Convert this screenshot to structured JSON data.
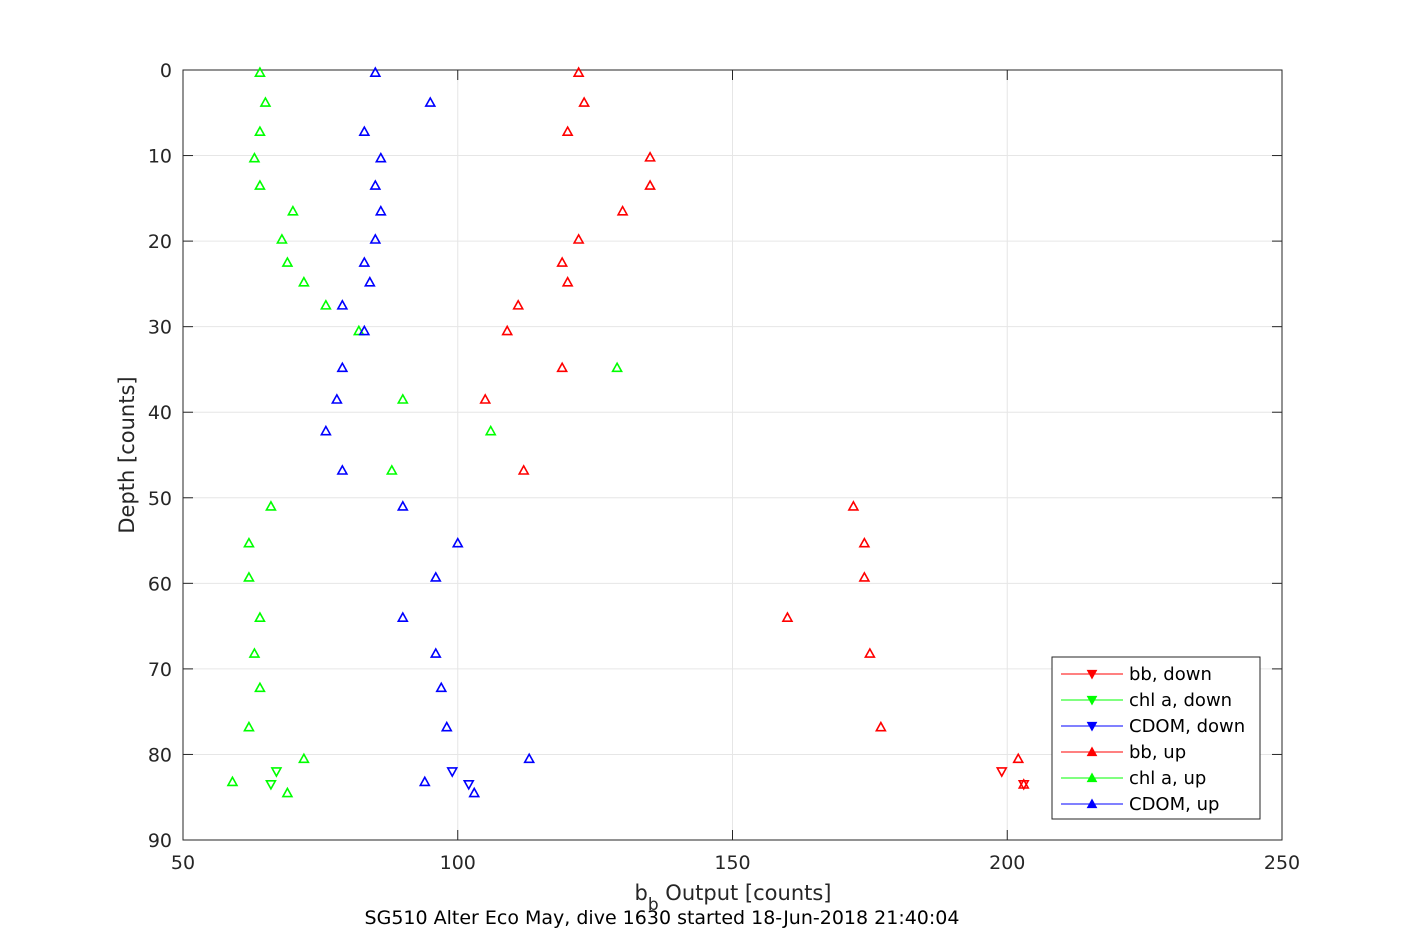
{
  "chart_data": {
    "type": "scatter",
    "caption": "SG510 Alter Eco May, dive 1630 started 18-Jun-2018 21:40:04",
    "xlabel_main": "b",
    "xlabel_sub": "b",
    "xlabel_rest": " Output [counts]",
    "ylabel": "Depth [counts]",
    "xlim": [
      50,
      250
    ],
    "ylim": [
      0,
      90
    ],
    "y_reversed": true,
    "grid": true,
    "legend_position": "bottom-right",
    "xticks": [
      "50",
      "100",
      "150",
      "200",
      "250"
    ],
    "yticks": [
      "0",
      "10",
      "20",
      "30",
      "40",
      "50",
      "60",
      "70",
      "80",
      "90"
    ],
    "series": [
      {
        "name": "bb, down",
        "color": "#ff0000",
        "marker": "triangle-down",
        "points": [
          [
            199,
            82
          ],
          [
            203,
            83.5
          ]
        ]
      },
      {
        "name": "chl a, down",
        "color": "#00ff00",
        "marker": "triangle-down",
        "points": [
          [
            67,
            82
          ],
          [
            66,
            83.5
          ]
        ]
      },
      {
        "name": "CDOM, down",
        "color": "#0000ff",
        "marker": "triangle-down",
        "points": [
          [
            99,
            82
          ],
          [
            102,
            83.5
          ]
        ]
      },
      {
        "name": "bb, up",
        "color": "#ff0000",
        "marker": "triangle-up",
        "points": [
          [
            122,
            0.3
          ],
          [
            123,
            3.8
          ],
          [
            120,
            7.2
          ],
          [
            135,
            10.2
          ],
          [
            135,
            13.5
          ],
          [
            130,
            16.5
          ],
          [
            122,
            19.8
          ],
          [
            119,
            22.5
          ],
          [
            120,
            24.8
          ],
          [
            111,
            27.5
          ],
          [
            109,
            30.5
          ],
          [
            119,
            34.8
          ],
          [
            105,
            38.5
          ],
          [
            112,
            46.8
          ],
          [
            172,
            51
          ],
          [
            174,
            55.3
          ],
          [
            174,
            59.3
          ],
          [
            160,
            64
          ],
          [
            175,
            68.2
          ],
          [
            177,
            76.8
          ],
          [
            202,
            80.5
          ],
          [
            203,
            83.5
          ]
        ]
      },
      {
        "name": "chl a, up",
        "color": "#00ff00",
        "marker": "triangle-up",
        "points": [
          [
            64,
            0.3
          ],
          [
            65,
            3.8
          ],
          [
            64,
            7.2
          ],
          [
            63,
            10.3
          ],
          [
            64,
            13.5
          ],
          [
            70,
            16.5
          ],
          [
            68,
            19.8
          ],
          [
            69,
            22.5
          ],
          [
            72,
            24.8
          ],
          [
            76,
            27.5
          ],
          [
            82,
            30.5
          ],
          [
            129,
            34.8
          ],
          [
            90,
            38.5
          ],
          [
            106,
            42.2
          ],
          [
            88,
            46.8
          ],
          [
            66,
            51
          ],
          [
            62,
            55.3
          ],
          [
            62,
            59.3
          ],
          [
            64,
            64
          ],
          [
            63,
            68.2
          ],
          [
            64,
            72.2
          ],
          [
            62,
            76.8
          ],
          [
            72,
            80.5
          ],
          [
            59,
            83.2
          ],
          [
            69,
            84.5
          ]
        ]
      },
      {
        "name": "CDOM, up",
        "color": "#0000ff",
        "marker": "triangle-up",
        "points": [
          [
            85,
            0.3
          ],
          [
            95,
            3.8
          ],
          [
            83,
            7.2
          ],
          [
            86,
            10.3
          ],
          [
            85,
            13.5
          ],
          [
            86,
            16.5
          ],
          [
            85,
            19.8
          ],
          [
            83,
            22.5
          ],
          [
            84,
            24.8
          ],
          [
            79,
            27.5
          ],
          [
            83,
            30.5
          ],
          [
            79,
            34.8
          ],
          [
            78,
            38.5
          ],
          [
            76,
            42.2
          ],
          [
            79,
            46.8
          ],
          [
            90,
            51
          ],
          [
            100,
            55.3
          ],
          [
            96,
            59.3
          ],
          [
            90,
            64
          ],
          [
            96,
            68.2
          ],
          [
            97,
            72.2
          ],
          [
            98,
            76.8
          ],
          [
            113,
            80.5
          ],
          [
            94,
            83.2
          ],
          [
            103,
            84.5
          ]
        ]
      }
    ]
  }
}
